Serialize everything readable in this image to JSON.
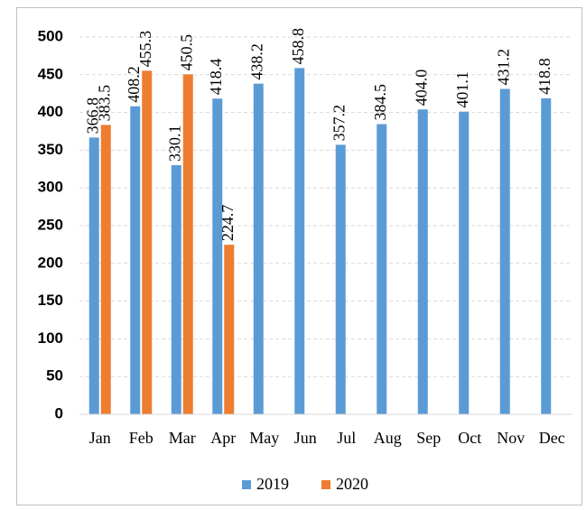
{
  "chart_data": {
    "type": "bar",
    "categories": [
      "Jan",
      "Feb",
      "Mar",
      "Apr",
      "May",
      "Jun",
      "Jul",
      "Aug",
      "Sep",
      "Oct",
      "Nov",
      "Dec"
    ],
    "series": [
      {
        "name": "2019",
        "color": "#5b9bd5",
        "values": [
          366.8,
          408.2,
          330.1,
          418.4,
          438.2,
          458.8,
          357.2,
          384.5,
          404.0,
          401.1,
          431.2,
          418.8
        ],
        "value_labels": [
          "366.8",
          "408.2",
          "330.1",
          "418.4",
          "438.2",
          "458.8",
          "357.2",
          "384.5",
          "404.0",
          "401.1",
          "431.2",
          "418.8"
        ]
      },
      {
        "name": "2020",
        "color": "#ed7d31",
        "values": [
          383.5,
          455.3,
          450.5,
          224.7,
          null,
          null,
          null,
          null,
          null,
          null,
          null,
          null
        ],
        "value_labels": [
          "383.5",
          "455.3",
          "450.5",
          "224.7",
          null,
          null,
          null,
          null,
          null,
          null,
          null,
          null
        ]
      }
    ],
    "ylim": [
      0,
      500
    ],
    "yticks": [
      0,
      50,
      100,
      150,
      200,
      250,
      300,
      350,
      400,
      450,
      500
    ],
    "grid": true,
    "legend": "bottom"
  }
}
